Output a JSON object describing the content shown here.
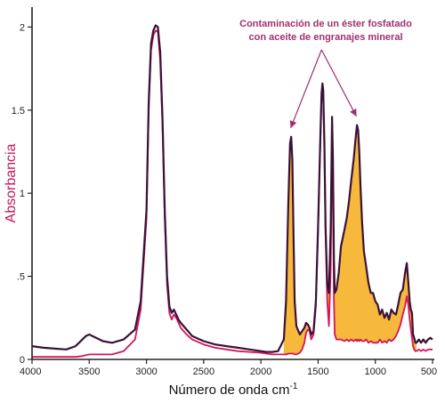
{
  "colors": {
    "contaminated": "#3a1238",
    "reference": "#d4145a",
    "fill": "#f6b93b",
    "annotation": "#a0306e",
    "axis": "#222222",
    "ylabel": "#c2185b"
  },
  "chart_data": {
    "type": "line",
    "xlabel": "Número de onda cm",
    "xlabel_sup": "-1",
    "ylabel": "Absorbancia",
    "xlim": [
      4000,
      500
    ],
    "ylim": [
      0,
      2.12
    ],
    "x_reversed": true,
    "grid": false,
    "xticks": [
      4000,
      3500,
      3000,
      2500,
      2000,
      1500,
      1000,
      500
    ],
    "xtick_labels": [
      "4000",
      "3500",
      "3000",
      "2500",
      "2000",
      "1500",
      "1000",
      "500"
    ],
    "yticks": [
      0,
      0.5,
      1,
      1.5,
      2
    ],
    "ytick_labels": [
      "0",
      ".5",
      "1",
      "1.5",
      "2"
    ],
    "annotation": {
      "lines": [
        "Contaminación de un éster fosfatado",
        "con aceite de engranajes mineral"
      ],
      "apex": [
        1470,
        1.85
      ],
      "targets": [
        [
          1740,
          1.36
        ],
        [
          1165,
          1.43
        ]
      ]
    },
    "series": [
      {
        "color_key": "contaminated",
        "x": [
          4000,
          3900,
          3800,
          3700,
          3620,
          3560,
          3530,
          3500,
          3440,
          3380,
          3300,
          3200,
          3100,
          3050,
          3000,
          2980,
          2960,
          2940,
          2920,
          2900,
          2880,
          2860,
          2840,
          2820,
          2800,
          2780,
          2760,
          2740,
          2720,
          2700,
          2650,
          2600,
          2500,
          2400,
          2300,
          2200,
          2100,
          2000,
          1950,
          1900,
          1850,
          1800,
          1780,
          1760,
          1745,
          1735,
          1725,
          1715,
          1705,
          1690,
          1660,
          1640,
          1620,
          1605,
          1590,
          1575,
          1560,
          1540,
          1520,
          1500,
          1480,
          1470,
          1462,
          1455,
          1445,
          1435,
          1420,
          1405,
          1390,
          1378,
          1370,
          1362,
          1355,
          1340,
          1320,
          1300,
          1270,
          1250,
          1230,
          1210,
          1190,
          1170,
          1160,
          1150,
          1140,
          1130,
          1115,
          1100,
          1080,
          1060,
          1040,
          1020,
          1000,
          980,
          960,
          940,
          920,
          900,
          880,
          860,
          840,
          820,
          800,
          780,
          760,
          740,
          725,
          712,
          700,
          690,
          680,
          670,
          660,
          650,
          640,
          620,
          600,
          580,
          560,
          540,
          520,
          500
        ],
        "y": [
          0.08,
          0.07,
          0.065,
          0.06,
          0.08,
          0.12,
          0.14,
          0.15,
          0.13,
          0.11,
          0.1,
          0.12,
          0.18,
          0.35,
          0.9,
          1.55,
          1.9,
          1.98,
          2.01,
          2.0,
          1.85,
          1.45,
          0.9,
          0.5,
          0.32,
          0.28,
          0.3,
          0.27,
          0.24,
          0.22,
          0.18,
          0.14,
          0.11,
          0.09,
          0.08,
          0.07,
          0.06,
          0.05,
          0.045,
          0.045,
          0.05,
          0.12,
          0.35,
          0.95,
          1.3,
          1.34,
          1.2,
          0.75,
          0.35,
          0.2,
          0.15,
          0.17,
          0.19,
          0.22,
          0.21,
          0.19,
          0.15,
          0.17,
          0.35,
          0.8,
          1.35,
          1.6,
          1.66,
          1.62,
          1.3,
          0.8,
          0.45,
          0.4,
          0.8,
          1.46,
          1.2,
          0.6,
          0.4,
          0.42,
          0.52,
          0.68,
          0.78,
          0.85,
          0.95,
          1.08,
          1.2,
          1.35,
          1.41,
          1.38,
          1.25,
          1.05,
          0.82,
          0.65,
          0.56,
          0.46,
          0.4,
          0.4,
          0.35,
          0.33,
          0.27,
          0.3,
          0.25,
          0.28,
          0.24,
          0.3,
          0.28,
          0.27,
          0.33,
          0.4,
          0.42,
          0.52,
          0.58,
          0.47,
          0.35,
          0.3,
          0.28,
          0.15,
          0.13,
          0.1,
          0.1,
          0.12,
          0.1,
          0.12,
          0.1,
          0.12,
          0.13,
          0.12
        ]
      },
      {
        "color_key": "reference",
        "x": [
          4000,
          3900,
          3800,
          3700,
          3620,
          3560,
          3530,
          3500,
          3440,
          3380,
          3300,
          3200,
          3100,
          3050,
          3000,
          2980,
          2960,
          2940,
          2920,
          2900,
          2880,
          2860,
          2840,
          2820,
          2800,
          2780,
          2760,
          2740,
          2720,
          2700,
          2650,
          2600,
          2500,
          2400,
          2300,
          2200,
          2100,
          2000,
          1950,
          1900,
          1850,
          1800,
          1780,
          1760,
          1745,
          1735,
          1725,
          1715,
          1705,
          1690,
          1660,
          1640,
          1620,
          1605,
          1590,
          1575,
          1560,
          1540,
          1520,
          1500,
          1480,
          1470,
          1462,
          1455,
          1445,
          1435,
          1420,
          1405,
          1390,
          1378,
          1370,
          1362,
          1355,
          1340,
          1320,
          1300,
          1270,
          1250,
          1230,
          1210,
          1190,
          1170,
          1160,
          1150,
          1140,
          1130,
          1115,
          1100,
          1080,
          1060,
          1040,
          1020,
          1000,
          980,
          960,
          940,
          920,
          900,
          880,
          860,
          840,
          820,
          800,
          780,
          760,
          740,
          725,
          712,
          700,
          690,
          680,
          670,
          660,
          650,
          640,
          620,
          600,
          580,
          560,
          540,
          520,
          500
        ],
        "y": [
          0.015,
          0.015,
          0.015,
          0.015,
          0.015,
          0.02,
          0.025,
          0.03,
          0.03,
          0.03,
          0.03,
          0.05,
          0.12,
          0.3,
          0.85,
          1.5,
          1.86,
          1.95,
          1.98,
          1.97,
          1.8,
          1.4,
          0.85,
          0.45,
          0.28,
          0.24,
          0.27,
          0.25,
          0.22,
          0.19,
          0.15,
          0.12,
          0.09,
          0.07,
          0.06,
          0.05,
          0.045,
          0.04,
          0.035,
          0.03,
          0.03,
          0.03,
          0.03,
          0.035,
          0.035,
          0.035,
          0.035,
          0.035,
          0.03,
          0.03,
          0.04,
          0.06,
          0.1,
          0.16,
          0.18,
          0.17,
          0.12,
          0.15,
          0.32,
          0.78,
          1.32,
          1.57,
          1.63,
          1.58,
          1.25,
          0.75,
          0.35,
          0.2,
          0.55,
          1.3,
          1.0,
          0.35,
          0.15,
          0.12,
          0.12,
          0.12,
          0.11,
          0.12,
          0.11,
          0.12,
          0.11,
          0.12,
          0.11,
          0.12,
          0.11,
          0.12,
          0.11,
          0.11,
          0.12,
          0.1,
          0.11,
          0.1,
          0.1,
          0.1,
          0.12,
          0.1,
          0.11,
          0.1,
          0.12,
          0.11,
          0.12,
          0.14,
          0.17,
          0.21,
          0.27,
          0.32,
          0.38,
          0.33,
          0.24,
          0.18,
          0.13,
          0.08,
          0.06,
          0.05,
          0.05,
          0.06,
          0.05,
          0.06,
          0.05,
          0.06,
          0.06,
          0.06
        ]
      }
    ]
  }
}
